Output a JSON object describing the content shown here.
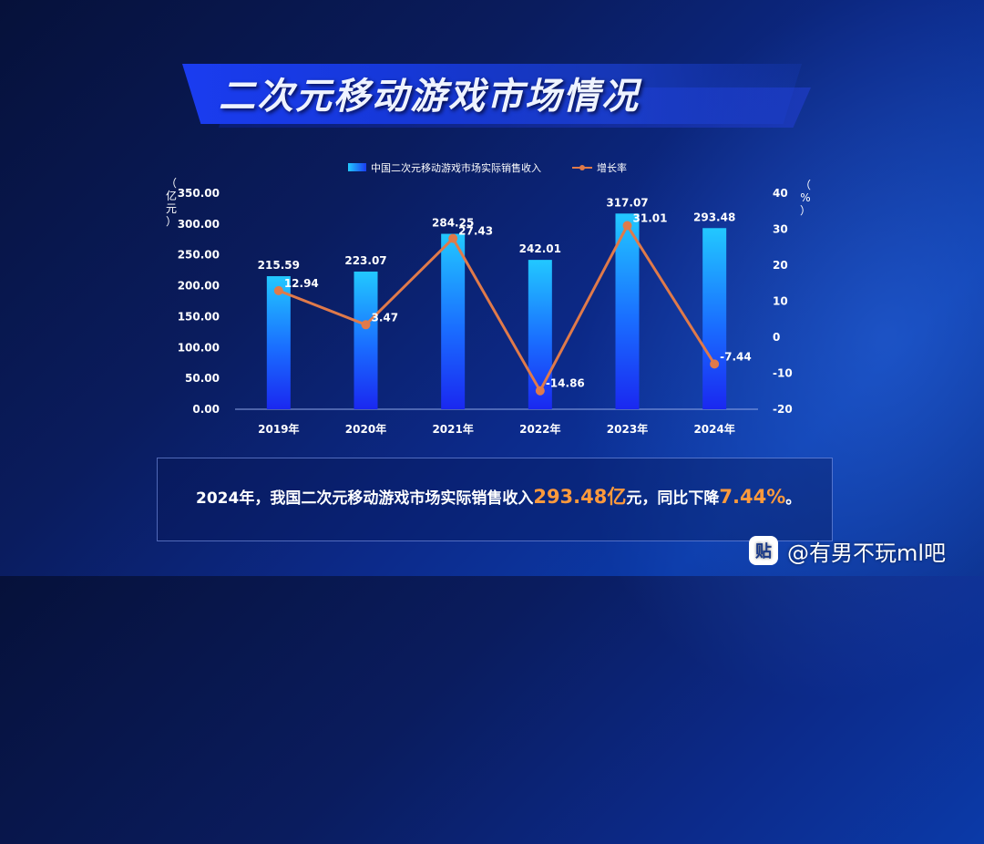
{
  "page": {
    "title": "二次元移动游戏市场情况"
  },
  "chart_data": {
    "type": "bar",
    "categories": [
      "2019年",
      "2020年",
      "2021年",
      "2022年",
      "2023年",
      "2024年"
    ],
    "legend": {
      "placement": "top-center"
    },
    "series": [
      {
        "name": "中国二次元移动游戏市场实际销售收入",
        "type": "bar",
        "axis": "left",
        "values": [
          215.59,
          223.07,
          284.25,
          242.01,
          317.07,
          293.48
        ],
        "value_labels": [
          "215.59",
          "223.07",
          "284.25",
          "242.01",
          "317.07",
          "293.48"
        ],
        "color": "#1e6bff"
      },
      {
        "name": "增长率",
        "type": "line",
        "axis": "right",
        "values": [
          12.94,
          3.47,
          27.43,
          -14.86,
          31.01,
          -7.44
        ],
        "value_labels": [
          "12.94",
          "3.47",
          "27.43",
          "-14.86",
          "31.01",
          "-7.44"
        ],
        "color": "#e07a4a"
      }
    ],
    "y_left": {
      "label": "（亿元）",
      "ylim": [
        0,
        350
      ],
      "ticks": [
        "0.00",
        "50.00",
        "100.00",
        "150.00",
        "200.00",
        "250.00",
        "300.00",
        "350.00"
      ]
    },
    "y_right": {
      "label": "（%）",
      "ylim": [
        -20,
        40
      ],
      "ticks": [
        "-20",
        "-10",
        "0",
        "10",
        "20",
        "30",
        "40"
      ]
    },
    "grid": false
  },
  "summary": {
    "prefix": "2024年，我国二次元移动游戏市场实际销售收入",
    "revenue": "293.48亿",
    "middle": "元，同比下降",
    "decline": "7.44%",
    "suffix": "。"
  },
  "watermark": {
    "icon_text": "贴",
    "icon": "tieba-icon",
    "text": "@有男不玩ml吧"
  },
  "colors": {
    "accent_orange": "#ff9a3c",
    "line": "#e07a4a",
    "bar_top": "#1fc4ff",
    "bar_bottom": "#1a2ef0"
  }
}
